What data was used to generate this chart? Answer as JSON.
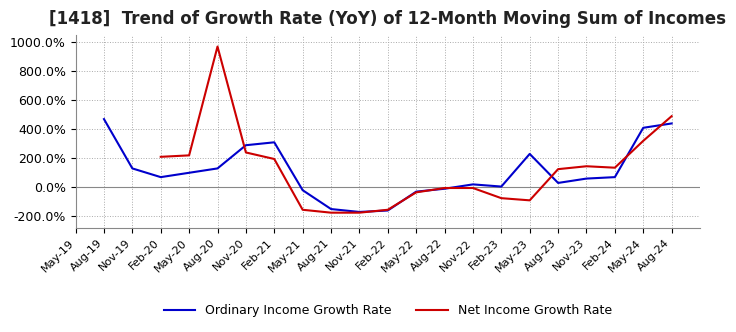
{
  "title": "[1418]  Trend of Growth Rate (YoY) of 12-Month Moving Sum of Incomes",
  "title_fontsize": 12,
  "ylim": [
    -280,
    1050
  ],
  "yticks": [
    -200,
    0,
    200,
    400,
    600,
    800,
    1000
  ],
  "ytick_labels": [
    "-200.0%",
    "0.0%",
    "200.0%",
    "400.0%",
    "600.0%",
    "800.0%",
    "1000.0%"
  ],
  "background_color": "#ffffff",
  "grid_color": "#aaaaaa",
  "ordinary_color": "#0000cc",
  "net_color": "#cc0000",
  "legend_labels": [
    "Ordinary Income Growth Rate",
    "Net Income Growth Rate"
  ],
  "x_labels": [
    "May-19",
    "Aug-19",
    "Nov-19",
    "Feb-20",
    "May-20",
    "Aug-20",
    "Nov-20",
    "Feb-21",
    "May-21",
    "Aug-21",
    "Nov-21",
    "Feb-22",
    "May-22",
    "Aug-22",
    "Nov-22",
    "Feb-23",
    "May-23",
    "Aug-23",
    "Nov-23",
    "Feb-24",
    "May-24",
    "Aug-24"
  ],
  "ordinary_income": [
    null,
    470,
    130,
    70,
    100,
    130,
    290,
    310,
    -20,
    -150,
    -170,
    -160,
    -30,
    -10,
    20,
    5,
    230,
    30,
    60,
    70,
    410,
    440
  ],
  "net_income": [
    null,
    null,
    null,
    210,
    220,
    970,
    240,
    195,
    -155,
    -175,
    -175,
    -155,
    -35,
    -5,
    -5,
    -75,
    -90,
    125,
    145,
    135,
    320,
    490
  ]
}
